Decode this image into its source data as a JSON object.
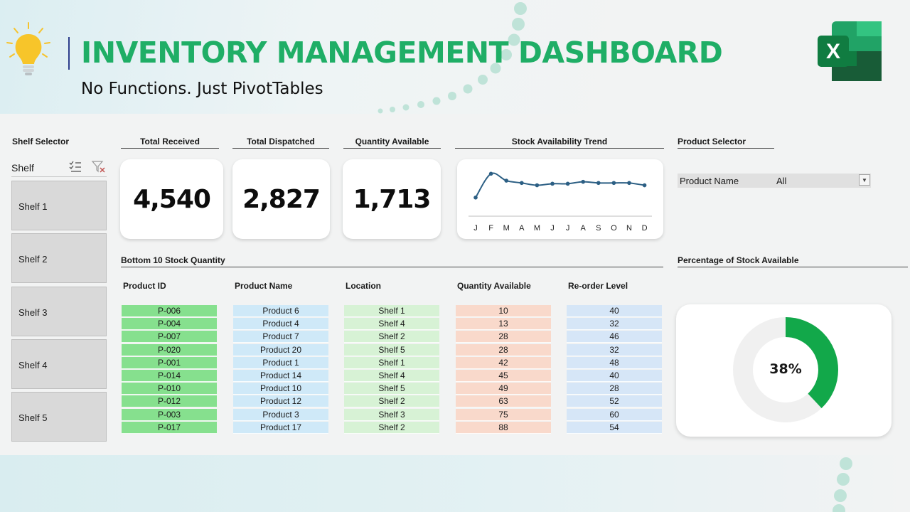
{
  "header": {
    "title": "INVENTORY MANAGEMENT DASHBOARD",
    "subtitle": "No Functions. Just PivotTables",
    "accent_color": "#1fae66",
    "excel_logo_letter": "X"
  },
  "shelf_slicer": {
    "title": "Shelf Selector",
    "header_label": "Shelf",
    "items": [
      "Shelf 1",
      "Shelf 2",
      "Shelf 3",
      "Shelf 4",
      "Shelf 5"
    ]
  },
  "kpis": [
    {
      "label": "Total Received",
      "value": "4,540"
    },
    {
      "label": "Total Dispatched",
      "value": "2,827"
    },
    {
      "label": "Quantity Available",
      "value": "1,713"
    }
  ],
  "trend": {
    "title": "Stock Availability Trend"
  },
  "product_selector": {
    "title": "Product Selector",
    "field_label": "Product Name",
    "selected_value": "All"
  },
  "bottom_table": {
    "title": "Bottom 10 Stock Quantity",
    "columns": [
      "Product ID",
      "Product Name",
      "Location",
      "Quantity Available",
      "Re-order Level"
    ],
    "column_colors": [
      "#86e08e",
      "#cfe9f8",
      "#d7f2d5",
      "#f9d9cb",
      "#d6e6f7"
    ],
    "rows": [
      [
        "P-006",
        "Product 6",
        "Shelf 1",
        "10",
        "40"
      ],
      [
        "P-004",
        "Product 4",
        "Shelf 4",
        "13",
        "32"
      ],
      [
        "P-007",
        "Product 7",
        "Shelf 2",
        "28",
        "46"
      ],
      [
        "P-020",
        "Product 20",
        "Shelf 5",
        "28",
        "32"
      ],
      [
        "P-001",
        "Product 1",
        "Shelf 1",
        "42",
        "48"
      ],
      [
        "P-014",
        "Product 14",
        "Shelf 4",
        "45",
        "40"
      ],
      [
        "P-010",
        "Product 10",
        "Shelf 5",
        "49",
        "28"
      ],
      [
        "P-012",
        "Product 12",
        "Shelf 2",
        "63",
        "52"
      ],
      [
        "P-003",
        "Product 3",
        "Shelf 3",
        "75",
        "60"
      ],
      [
        "P-017",
        "Product 17",
        "Shelf 2",
        "88",
        "54"
      ]
    ]
  },
  "percentage": {
    "title": "Percentage of Stock Available",
    "label": "38%",
    "value": 0.38,
    "fill_color": "#12a84a",
    "track_color": "#f0f0f0"
  },
  "chart_data": {
    "type": "line",
    "title": "Stock Availability Trend",
    "categories": [
      "J",
      "F",
      "M",
      "A",
      "M",
      "J",
      "J",
      "A",
      "S",
      "O",
      "N",
      "D"
    ],
    "values": [
      30,
      92,
      74,
      68,
      62,
      66,
      66,
      71,
      68,
      68,
      68,
      62
    ],
    "line_color": "#2c5f84",
    "grid": false
  }
}
